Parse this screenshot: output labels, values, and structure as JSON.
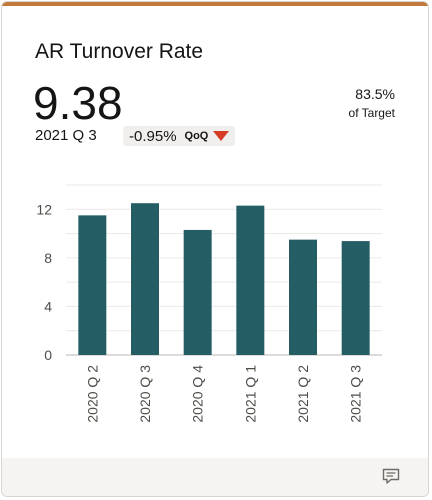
{
  "card": {
    "title": "AR Turnover Rate",
    "value": "9.38",
    "period": "2021 Q 3",
    "change": "-0.95%",
    "change_qualifier": "QoQ",
    "change_direction": "down",
    "target_value": "83.5%",
    "target_label": "of Target",
    "accent_color": "#c17a3c",
    "down_color": "#d63b25",
    "comment_icon": "comment-icon"
  },
  "chart_data": {
    "type": "bar",
    "categories": [
      "2020 Q 2",
      "2020 Q 3",
      "2020 Q 4",
      "2021 Q 1",
      "2021 Q 2",
      "2021 Q 3"
    ],
    "values": [
      11.5,
      12.5,
      10.3,
      12.3,
      9.5,
      9.38
    ],
    "yticks": [
      0,
      4,
      8,
      12
    ],
    "ylim": [
      0,
      14
    ],
    "grid": true,
    "bar_color": "#245e64",
    "title": "",
    "xlabel": "",
    "ylabel": ""
  }
}
